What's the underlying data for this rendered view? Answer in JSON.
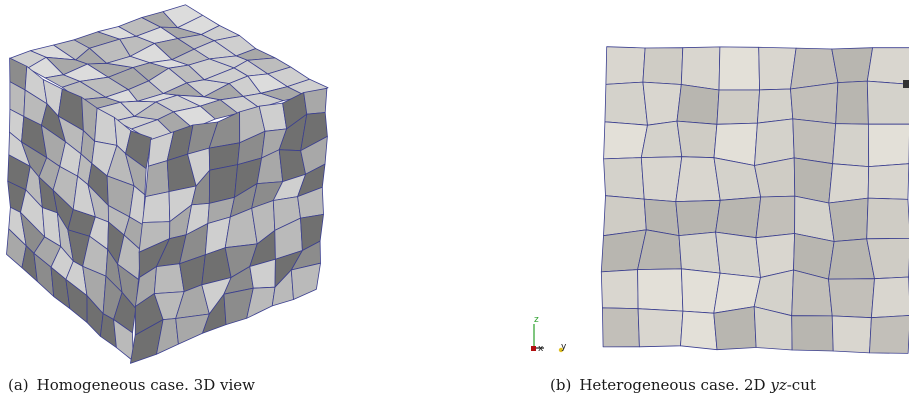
{
  "figure": {
    "panel_a": {
      "tag": "(a)",
      "caption": "Homogeneous case. 3D view"
    },
    "panel_b": {
      "tag": "(b)",
      "caption_prefix": "Heterogeneous case. 2D ",
      "caption_math": "yz",
      "caption_suffix": "-cut",
      "axes_labels": {
        "z": "z",
        "x": "x",
        "y": "y"
      }
    },
    "colors": {
      "mesh_edge": "#3b3f8f",
      "face_light": "#cfcfcf",
      "face_mid": "#a8a8a8",
      "face_dark": "#707070",
      "cut_face": "#d9d6cf"
    }
  }
}
